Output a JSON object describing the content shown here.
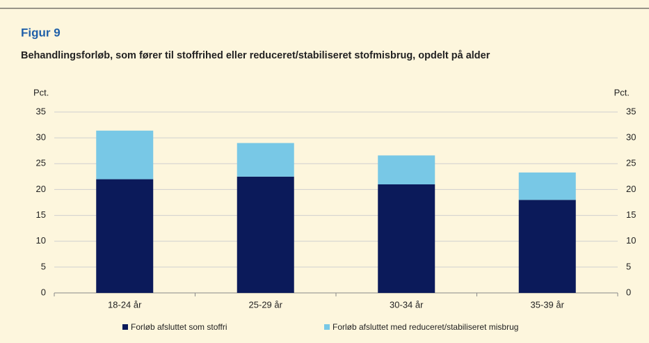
{
  "chart_data": {
    "type": "stacked_bar",
    "title": "Figur 9",
    "subtitle": "Behandlingsforløb, som fører til stoffrihed eller reduceret/stabiliseret stofmisbrug, opdelt på alder",
    "y_label": "Pct.",
    "y2_label": "Pct.",
    "categories": [
      "18-24 år",
      "25-29 år",
      "30-34 år",
      "35-39 år"
    ],
    "series": [
      {
        "name": "Forløb afsluttet som stoffri",
        "color": "#0b1a5a",
        "values": [
          22,
          22.5,
          21,
          18
        ]
      },
      {
        "name": "Forløb afsluttet med reduceret/stabiliseret misbrug",
        "color": "#78c8e6",
        "values": [
          9.4,
          6.5,
          5.6,
          5.3
        ]
      }
    ],
    "ylim": [
      0,
      35
    ],
    "yticks": [
      0,
      5,
      10,
      15,
      20,
      25,
      30,
      35
    ],
    "y2lim": [
      0,
      35
    ],
    "y2ticks": [
      0,
      5,
      10,
      15,
      20,
      25,
      30,
      35
    ],
    "grid": true,
    "legend": "bottom"
  }
}
